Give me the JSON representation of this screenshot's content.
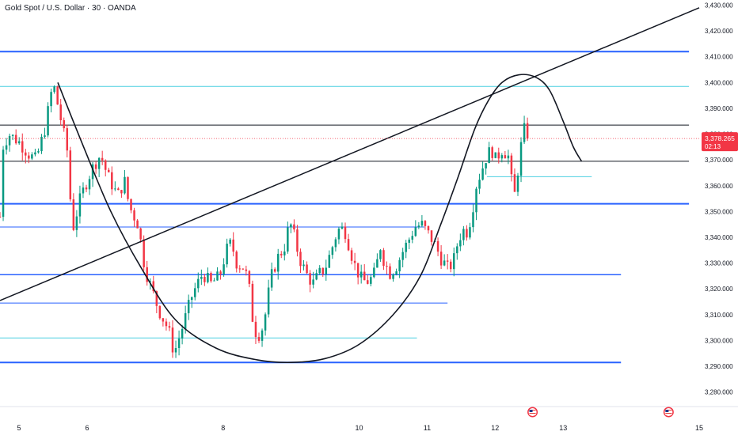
{
  "symbol_title": "Gold Spot / U.S. Dollar · 30 · OANDA",
  "chart_data": {
    "type": "candlestick",
    "ylim": [
      3275,
      3432
    ],
    "xlim": [
      4.72,
      15.0
    ],
    "y_ticks": [
      3280,
      3290,
      3300,
      3310,
      3320,
      3330,
      3340,
      3350,
      3360,
      3370,
      3380,
      3390,
      3400,
      3410,
      3420,
      3430
    ],
    "y_tick_labels": [
      "3,280.000",
      "3,290.000",
      "3,300.000",
      "3,310.000",
      "3,320.000",
      "3,330.000",
      "3,340.000",
      "3,350.000",
      "3,360.000",
      "3,370.000",
      "3,380.000",
      "3,390.000",
      "3,400.000",
      "3,410.000",
      "3,420.000",
      "3,430.000"
    ],
    "x_ticks": [
      5,
      6,
      8,
      10,
      11,
      12,
      13,
      15
    ],
    "x_tick_labels": [
      "5",
      "6",
      "8",
      "10",
      "11",
      "12",
      "13",
      "15"
    ],
    "price_label": {
      "price": "3,378.265",
      "countdown": "02:13",
      "value": 3378.3
    },
    "colors": {
      "up": "#089981",
      "down": "#f23645",
      "blue_line": "#2962ff",
      "cyan_line": "#4dd0e1",
      "black_line": "#131722",
      "price_dot": "#f23645"
    },
    "anchors": [
      [
        4.72,
        3348
      ],
      [
        4.76,
        3375
      ],
      [
        4.85,
        3380
      ],
      [
        5.0,
        3377
      ],
      [
        5.15,
        3372
      ],
      [
        5.25,
        3370
      ],
      [
        5.38,
        3382
      ],
      [
        5.5,
        3400
      ],
      [
        5.62,
        3385
      ],
      [
        5.72,
        3372
      ],
      [
        5.78,
        3342
      ],
      [
        5.9,
        3355
      ],
      [
        6.0,
        3362
      ],
      [
        6.1,
        3368
      ],
      [
        6.2,
        3372
      ],
      [
        6.3,
        3364
      ],
      [
        6.45,
        3356
      ],
      [
        6.55,
        3362
      ],
      [
        6.62,
        3352
      ],
      [
        6.75,
        3345
      ],
      [
        6.85,
        3328
      ],
      [
        6.95,
        3320
      ],
      [
        7.05,
        3312
      ],
      [
        7.2,
        3304
      ],
      [
        7.28,
        3295
      ],
      [
        7.4,
        3305
      ],
      [
        7.55,
        3318
      ],
      [
        7.7,
        3326
      ],
      [
        7.82,
        3322
      ],
      [
        7.95,
        3325
      ],
      [
        8.05,
        3335
      ],
      [
        8.12,
        3338
      ],
      [
        8.2,
        3330
      ],
      [
        8.32,
        3328
      ],
      [
        8.4,
        3318
      ],
      [
        8.45,
        3304
      ],
      [
        8.55,
        3302
      ],
      [
        8.62,
        3310
      ],
      [
        8.7,
        3324
      ],
      [
        8.8,
        3332
      ],
      [
        8.9,
        3336
      ],
      [
        8.98,
        3346
      ],
      [
        9.05,
        3340
      ],
      [
        9.12,
        3332
      ],
      [
        9.22,
        3326
      ],
      [
        9.32,
        3322
      ],
      [
        9.42,
        3326
      ],
      [
        9.5,
        3328
      ],
      [
        9.58,
        3334
      ],
      [
        9.65,
        3340
      ],
      [
        9.72,
        3344
      ],
      [
        9.8,
        3342
      ],
      [
        9.88,
        3334
      ],
      [
        9.95,
        3328
      ],
      [
        10.05,
        3323
      ],
      [
        10.15,
        3323
      ],
      [
        10.25,
        3327
      ],
      [
        10.3,
        3338
      ],
      [
        10.35,
        3332
      ],
      [
        10.45,
        3326
      ],
      [
        10.55,
        3329
      ],
      [
        10.65,
        3335
      ],
      [
        10.75,
        3340
      ],
      [
        10.82,
        3344
      ],
      [
        10.92,
        3345
      ],
      [
        11.0,
        3342
      ],
      [
        11.1,
        3338
      ],
      [
        11.2,
        3332
      ],
      [
        11.3,
        3328
      ],
      [
        11.38,
        3330
      ],
      [
        11.45,
        3338
      ],
      [
        11.52,
        3343
      ],
      [
        11.58,
        3342
      ],
      [
        11.65,
        3348
      ],
      [
        11.72,
        3360
      ],
      [
        11.8,
        3366
      ],
      [
        11.88,
        3372
      ],
      [
        11.95,
        3374
      ],
      [
        12.0,
        3370
      ],
      [
        12.05,
        3372
      ],
      [
        12.1,
        3374
      ],
      [
        12.18,
        3372
      ],
      [
        12.22,
        3370
      ],
      [
        12.26,
        3354
      ],
      [
        12.3,
        3358
      ],
      [
        12.36,
        3372
      ],
      [
        12.42,
        3382
      ],
      [
        12.47,
        3380
      ],
      [
        12.5,
        3378.3
      ]
    ],
    "candle_step": 0.047,
    "candle_seed": 7,
    "horizontal_lines": [
      {
        "price": 3412,
        "color": "blue",
        "weight": 2,
        "x_from": 4.72,
        "x_to": 14.85
      },
      {
        "price": 3398.5,
        "color": "cyan",
        "weight": 1,
        "x_from": 4.72,
        "x_to": 14.85
      },
      {
        "price": 3383.5,
        "color": "black",
        "weight": 1,
        "x_from": 4.72,
        "x_to": 14.85
      },
      {
        "price": 3369.5,
        "color": "black",
        "weight": 1,
        "x_from": 4.72,
        "x_to": 14.85
      },
      {
        "price": 3363.5,
        "color": "cyan",
        "weight": 1,
        "x_from": 11.88,
        "x_to": 13.42
      },
      {
        "price": 3353,
        "color": "blue",
        "weight": 2,
        "x_from": 4.72,
        "x_to": 14.85
      },
      {
        "price": 3344,
        "color": "blue",
        "weight": 1,
        "x_from": 4.72,
        "x_to": 10.96
      },
      {
        "price": 3325.5,
        "color": "blue",
        "weight": 1.5,
        "x_from": 4.72,
        "x_to": 13.85
      },
      {
        "price": 3314.5,
        "color": "blue",
        "weight": 1,
        "x_from": 4.72,
        "x_to": 11.3
      },
      {
        "price": 3301,
        "color": "cyan",
        "weight": 1,
        "x_from": 4.72,
        "x_to": 10.85
      },
      {
        "price": 3291.5,
        "color": "blue",
        "weight": 2,
        "x_from": 4.72,
        "x_to": 13.85
      }
    ],
    "trend_line": {
      "from": [
        4.72,
        3315.5
      ],
      "to": [
        15.0,
        3429
      ]
    },
    "curve": [
      [
        5.57,
        3400
      ],
      [
        5.95,
        3375
      ],
      [
        6.35,
        3350
      ],
      [
        6.8,
        3328
      ],
      [
        7.3,
        3308
      ],
      [
        7.9,
        3297
      ],
      [
        8.5,
        3292.5
      ],
      [
        9.0,
        3291.5
      ],
      [
        9.5,
        3293
      ],
      [
        10.0,
        3298.5
      ],
      [
        10.5,
        3310
      ],
      [
        10.9,
        3325
      ],
      [
        11.2,
        3345
      ],
      [
        11.45,
        3363
      ],
      [
        11.7,
        3382
      ],
      [
        11.9,
        3393
      ],
      [
        12.1,
        3400
      ],
      [
        12.35,
        3403
      ],
      [
        12.6,
        3402
      ],
      [
        12.8,
        3397
      ],
      [
        13.0,
        3385
      ],
      [
        13.15,
        3375
      ],
      [
        13.27,
        3369.5
      ]
    ],
    "event_markers": [
      {
        "x": 12.55,
        "label": "us-flag-icon"
      },
      {
        "x": 14.55,
        "label": "us-flag-icon"
      }
    ]
  }
}
